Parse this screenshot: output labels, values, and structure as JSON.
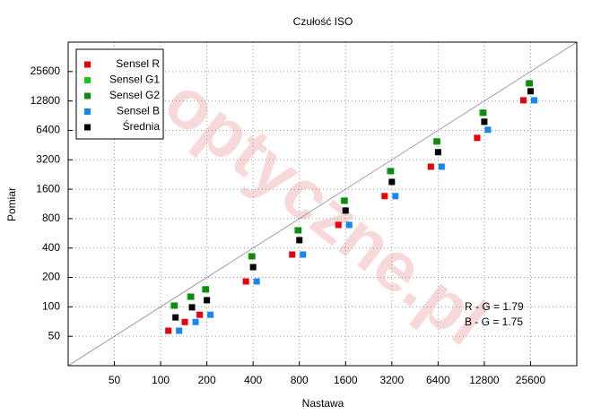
{
  "chart_data": {
    "type": "scatter",
    "title": "Czułość ISO",
    "xlabel": "Nastawa",
    "ylabel": "Pomiar",
    "x": [
      125,
      160,
      200,
      400,
      800,
      1600,
      3200,
      6400,
      12800,
      25600
    ],
    "series": [
      {
        "name": "Sensel R",
        "color": "#e8000b",
        "values": [
          57,
          70,
          83,
          182,
          343,
          690,
          1360,
          2720,
          5360,
          13000
        ]
      },
      {
        "name": "Sensel G1",
        "color": "#1bc41b",
        "values": [
          103,
          127,
          151,
          329,
          607,
          1220,
          2450,
          4930,
          9700,
          19400
        ]
      },
      {
        "name": "Sensel G2",
        "color": "#128a12",
        "values": [
          103,
          127,
          151,
          329,
          607,
          1220,
          2450,
          4930,
          9700,
          19400
        ]
      },
      {
        "name": "Sensel B",
        "color": "#1a86f0",
        "values": [
          57,
          70,
          83,
          182,
          343,
          690,
          1360,
          2720,
          6490,
          13000
        ]
      },
      {
        "name": "Średnia",
        "color": "#000000",
        "values": [
          78,
          99,
          117,
          255,
          482,
          968,
          1900,
          3830,
          7840,
          16100
        ]
      }
    ],
    "xlim": [
      25,
      51200
    ],
    "ylim": [
      25,
      51200
    ],
    "log_x": true,
    "log_y": true,
    "xticks": [
      50,
      100,
      200,
      400,
      800,
      1600,
      3200,
      6400,
      12800,
      25600
    ],
    "yticks": [
      50,
      100,
      200,
      400,
      800,
      1600,
      3200,
      6400,
      12800,
      25600
    ],
    "grid": true,
    "legend_position": "upper left",
    "annotations": [
      "R - G = 1.79",
      "B - G = 1.75"
    ],
    "watermark": "optyczne.pl"
  }
}
